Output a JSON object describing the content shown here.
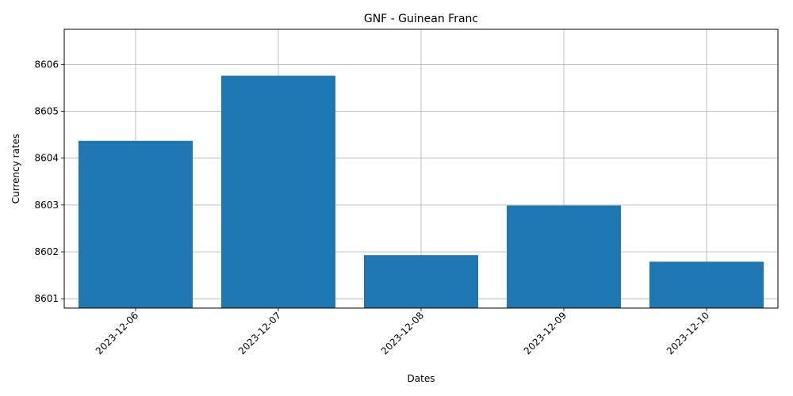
{
  "chart_data": {
    "type": "bar",
    "title": "GNF - Guinean Franc",
    "xlabel": "Dates",
    "ylabel": "Currency rates",
    "categories": [
      "2023-12-06",
      "2023-12-07",
      "2023-12-08",
      "2023-12-09",
      "2023-12-10"
    ],
    "values": [
      8604.37,
      8605.76,
      8601.93,
      8602.99,
      8601.79
    ],
    "ylim": [
      8600.8,
      8606.75
    ],
    "yticks": [
      "8601",
      "8602",
      "8603",
      "8604",
      "8605",
      "8606"
    ],
    "grid": true,
    "bar_color": "#1f77b4",
    "grid_color": "#b0b0b0"
  }
}
